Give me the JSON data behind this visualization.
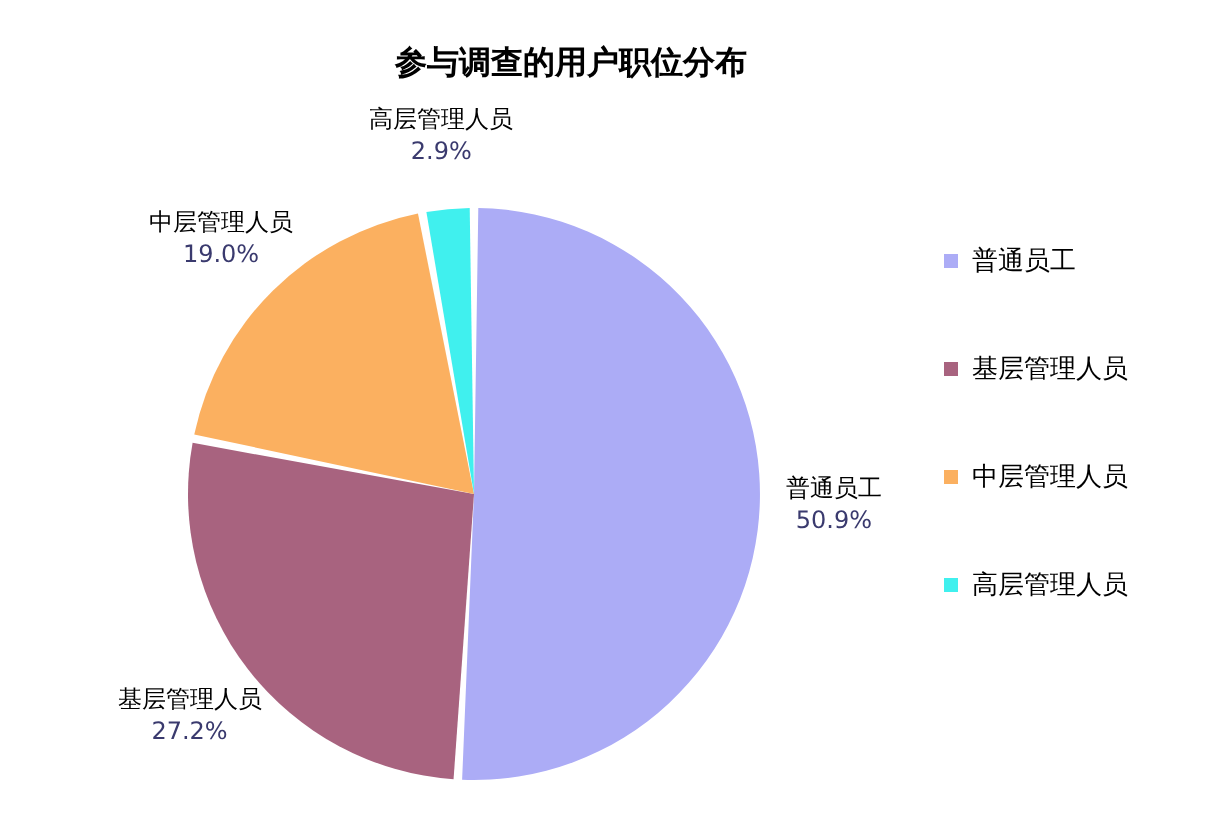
{
  "chart_data": {
    "type": "pie",
    "title": "参与调查的用户职位分布",
    "categories": [
      "普通员工",
      "基层管理人员",
      "中层管理人员",
      "高层管理人员"
    ],
    "values": [
      50.9,
      27.2,
      19.0,
      2.9
    ],
    "value_labels": [
      "50.9%",
      "27.2%",
      "19.0%",
      "2.9%"
    ],
    "colors": [
      "#acacf6",
      "#a8637f",
      "#fbb060",
      "#40f0ee"
    ],
    "legend": "right"
  }
}
